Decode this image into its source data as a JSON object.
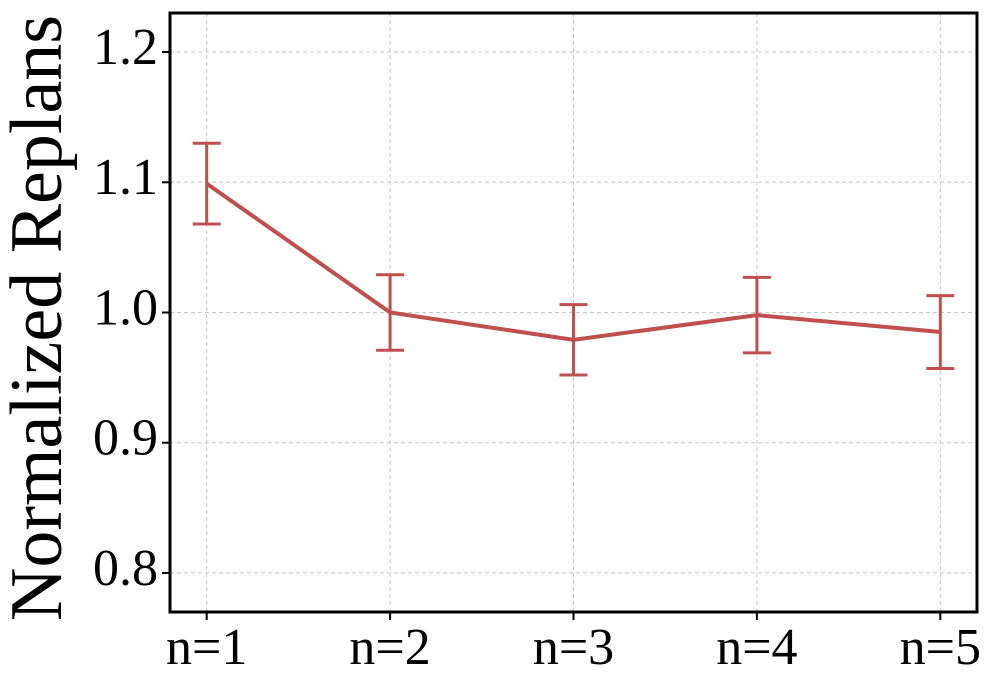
{
  "chart_data": {
    "type": "line",
    "ylabel": "Normalized Replans",
    "categories": [
      "n=1",
      "n=2",
      "n=3",
      "n=4",
      "n=5"
    ],
    "series": [
      {
        "color": "#c0504d",
        "values": [
          1.099,
          1.0,
          0.979,
          0.998,
          0.985
        ],
        "errors": [
          0.031,
          0.029,
          0.027,
          0.029,
          0.028
        ]
      }
    ],
    "ylim": [
      0.77,
      1.23
    ],
    "yticks": [
      0.8,
      0.9,
      {
        "value": 1,
        "label": "1.0"
      },
      1.1,
      1.2
    ],
    "grid": true
  }
}
